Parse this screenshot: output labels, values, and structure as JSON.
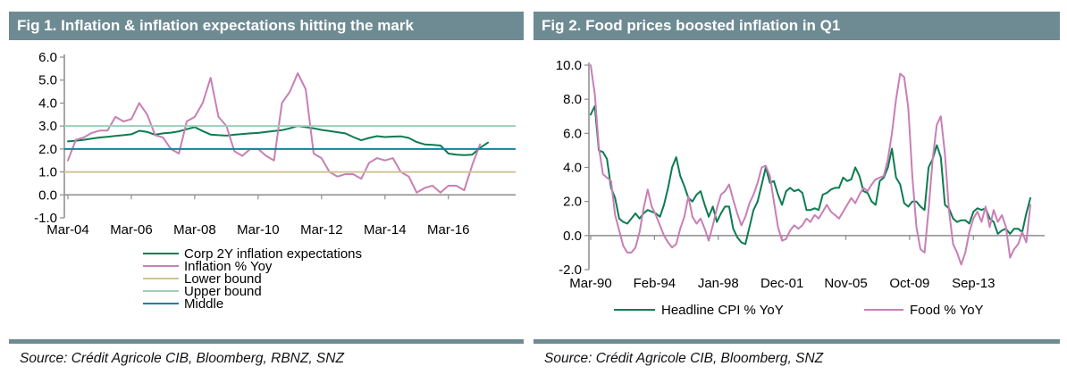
{
  "page": {
    "accent_color": "#6e8b93",
    "background": "#ffffff"
  },
  "panels": [
    {
      "title": "Fig 1. Inflation & inflation expectations hitting the mark",
      "source": "Source: Crédit Agricole CIB, Bloomberg, RBNZ, SNZ"
    },
    {
      "title": "Fig 2. Food prices boosted inflation in Q1",
      "source": "Source: Crédit Agricole CIB, Bloomberg, SNZ"
    }
  ],
  "chart_data": [
    {
      "type": "line",
      "title": "Fig 1. Inflation & inflation expectations hitting the mark",
      "xlabel": "",
      "ylabel": "",
      "ylim": [
        -1.0,
        6.0
      ],
      "ytick_step": 1.0,
      "grid": false,
      "axis_color": "#8c8c8c",
      "legend_position": "bottom-left",
      "x_tick_labels": [
        "Mar-04",
        "Mar-06",
        "Mar-08",
        "Mar-10",
        "Mar-12",
        "Mar-14",
        "Mar-16"
      ],
      "x_tick_positions": [
        0,
        8,
        16,
        24,
        32,
        40,
        48
      ],
      "x_frequency": "quarterly",
      "x_range": [
        "Mar-04",
        "Jun-17"
      ],
      "series": [
        {
          "name": "Corp 2Y inflation expectations",
          "color": "#0c7c50",
          "values": [
            2.33,
            2.36,
            2.4,
            2.45,
            2.5,
            2.53,
            2.57,
            2.6,
            2.64,
            2.79,
            2.74,
            2.62,
            2.68,
            2.71,
            2.77,
            2.86,
            2.95,
            2.78,
            2.63,
            2.6,
            2.58,
            2.62,
            2.65,
            2.68,
            2.7,
            2.74,
            2.78,
            2.82,
            2.9,
            3.0,
            2.95,
            2.9,
            2.83,
            2.78,
            2.73,
            2.68,
            2.52,
            2.38,
            2.48,
            2.56,
            2.52,
            2.54,
            2.55,
            2.48,
            2.3,
            2.2,
            2.18,
            2.15,
            1.8,
            1.75,
            1.73,
            1.75,
            2.05,
            2.28
          ]
        },
        {
          "name": "Inflation % Yoy",
          "color": "#c87fb5",
          "values": [
            1.5,
            2.4,
            2.5,
            2.7,
            2.8,
            2.8,
            3.4,
            3.2,
            3.3,
            4.0,
            3.5,
            2.6,
            2.5,
            2.0,
            1.8,
            3.2,
            3.4,
            4.0,
            5.1,
            3.4,
            3.0,
            1.9,
            1.7,
            2.0,
            2.0,
            1.7,
            1.5,
            4.0,
            4.5,
            5.3,
            4.6,
            1.8,
            1.6,
            1.0,
            0.8,
            0.9,
            0.9,
            0.7,
            1.4,
            1.6,
            1.5,
            1.6,
            1.0,
            0.8,
            0.1,
            0.3,
            0.4,
            0.1,
            0.4,
            0.4,
            0.2,
            1.3,
            2.2
          ]
        },
        {
          "name": "Lower bound",
          "color": "#cfc49b",
          "constant": 1.0
        },
        {
          "name": "Upper bound",
          "color": "#9fceba",
          "constant": 3.0
        },
        {
          "name": "Middle",
          "color": "#0d83a3",
          "constant": 2.0
        }
      ]
    },
    {
      "type": "line",
      "title": "Fig 2. Food prices boosted inflation in Q1",
      "xlabel": "",
      "ylabel": "",
      "ylim": [
        -2.0,
        10.0
      ],
      "ytick_step": 2.0,
      "grid": false,
      "axis_color": "#8c8c8c",
      "legend_position": "bottom-horizontal",
      "x_tick_labels": [
        "Mar-90",
        "Feb-94",
        "Jan-98",
        "Dec-01",
        "Nov-05",
        "Oct-09",
        "Sep-13"
      ],
      "x_tick_positions": [
        0,
        15.667,
        31.333,
        47,
        62.667,
        78.333,
        94
      ],
      "x_frequency": "quarterly",
      "x_range": [
        "Mar-90",
        "Mar-17"
      ],
      "series": [
        {
          "name": "Headline CPI % YoY",
          "color": "#0c7c50",
          "values": [
            7.1,
            7.6,
            5.0,
            4.9,
            4.5,
            2.8,
            2.2,
            1.0,
            0.8,
            0.7,
            1.0,
            1.3,
            1.0,
            1.3,
            1.5,
            1.4,
            1.3,
            1.1,
            1.8,
            2.8,
            4.0,
            4.6,
            3.5,
            2.9,
            2.2,
            2.0,
            2.4,
            2.6,
            1.8,
            1.1,
            1.7,
            0.8,
            1.3,
            1.7,
            1.7,
            0.4,
            -0.1,
            -0.4,
            -0.5,
            0.5,
            1.5,
            2.0,
            3.0,
            4.0,
            3.1,
            3.2,
            2.4,
            1.8,
            2.6,
            2.8,
            2.6,
            2.7,
            2.5,
            1.5,
            1.5,
            1.6,
            1.5,
            2.4,
            2.5,
            2.7,
            2.8,
            2.8,
            3.4,
            3.2,
            3.3,
            4.0,
            3.5,
            2.6,
            2.5,
            2.0,
            1.8,
            3.2,
            3.4,
            4.0,
            5.1,
            3.4,
            3.0,
            1.9,
            1.7,
            2.0,
            2.0,
            1.7,
            1.5,
            4.0,
            4.5,
            5.3,
            4.6,
            1.8,
            1.6,
            1.0,
            0.8,
            0.9,
            0.9,
            0.7,
            1.4,
            1.6,
            1.5,
            1.6,
            1.0,
            0.8,
            0.1,
            0.3,
            0.4,
            0.1,
            0.4,
            0.4,
            0.2,
            1.3,
            2.2
          ]
        },
        {
          "name": "Food % YoY",
          "color": "#c87fb5",
          "values": [
            10.0,
            8.3,
            5.2,
            3.6,
            3.4,
            3.2,
            1.2,
            0.3,
            -0.6,
            -1.0,
            -1.0,
            -0.7,
            0.2,
            1.6,
            2.7,
            1.7,
            1.2,
            0.6,
            0.0,
            -0.4,
            -0.7,
            -0.5,
            0.4,
            1.1,
            2.3,
            1.1,
            0.7,
            1.0,
            0.4,
            -0.3,
            0.6,
            1.6,
            2.4,
            2.6,
            3.0,
            2.1,
            1.3,
            0.6,
            1.1,
            1.9,
            2.4,
            3.1,
            4.0,
            4.1,
            3.5,
            2.0,
            0.5,
            -0.3,
            -0.2,
            0.3,
            0.6,
            0.4,
            0.6,
            1.0,
            0.8,
            1.2,
            1.0,
            1.4,
            1.8,
            1.4,
            1.2,
            1.0,
            1.4,
            1.8,
            2.2,
            1.9,
            2.4,
            2.8,
            2.6,
            3.0,
            3.3,
            3.4,
            3.5,
            4.5,
            6.0,
            8.0,
            9.5,
            9.3,
            7.5,
            3.5,
            0.5,
            -0.8,
            -1.0,
            1.5,
            4.5,
            6.5,
            7.0,
            4.8,
            1.5,
            -0.5,
            -1.0,
            -1.7,
            -1.0,
            0.2,
            1.0,
            1.4,
            0.8,
            1.7,
            0.5,
            1.5,
            0.8,
            1.2,
            0.5,
            -1.3,
            -0.8,
            -0.5,
            0.2,
            -0.4,
            1.8
          ]
        }
      ]
    }
  ]
}
